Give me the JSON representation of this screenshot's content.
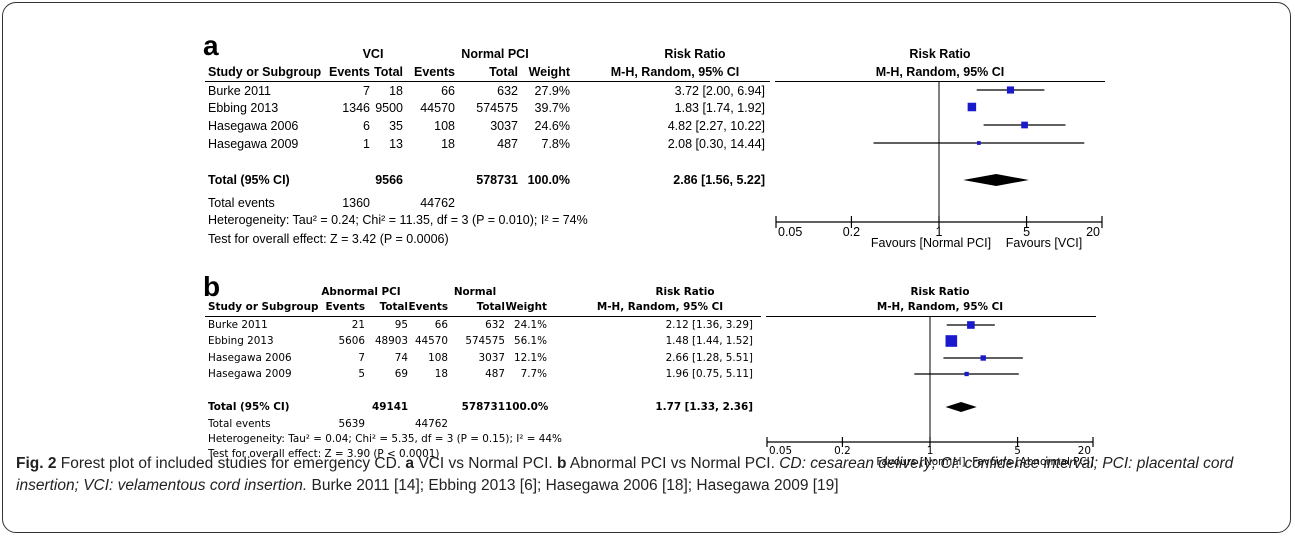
{
  "panel_a": {
    "letter": "a",
    "group1": "VCI",
    "group2": "Normal PCI",
    "col_study": "Study or Subgroup",
    "col_events1": "Events",
    "col_total1": "Total",
    "col_events2": "Events",
    "col_total2": "Total",
    "col_weight": "Weight",
    "rr_title": "Risk Ratio",
    "rr_method": "M-H, Random, 95% CI",
    "plot_title": "Risk Ratio",
    "plot_method": "M-H, Random, 95% CI",
    "rows": [
      {
        "study": "Burke 2011",
        "e1": "7",
        "t1": "18",
        "e2": "66",
        "t2": "632",
        "weight": "27.9%",
        "ci": "3.72 [2.00, 6.94]"
      },
      {
        "study": "Ebbing 2013",
        "e1": "1346",
        "t1": "9500",
        "e2": "44570",
        "t2": "574575",
        "weight": "39.7%",
        "ci": "1.83 [1.74, 1.92]"
      },
      {
        "study": "Hasegawa 2006",
        "e1": "6",
        "t1": "35",
        "e2": "108",
        "t2": "3037",
        "weight": "24.6%",
        "ci": "4.82 [2.27, 10.22]"
      },
      {
        "study": "Hasegawa 2009",
        "e1": "1",
        "t1": "13",
        "e2": "18",
        "t2": "487",
        "weight": "7.8%",
        "ci": "2.08 [0.30, 14.44]"
      }
    ],
    "total_label": "Total (95% CI)",
    "total_t1": "9566",
    "total_t2": "578731",
    "total_weight": "100.0%",
    "total_ci": "2.86 [1.56, 5.22]",
    "events_label": "Total events",
    "events_e1": "1360",
    "events_e2": "44762",
    "heterogeneity": "Heterogeneity: Tau² = 0.24; Chi² = 11.35, df = 3 (P = 0.010); I² = 74%",
    "overall": "Test for overall effect: Z = 3.42 (P = 0.0006)",
    "favours_left": "Favours [Normal PCI]",
    "favours_right": "Favours [VCI]"
  },
  "panel_b": {
    "letter": "b",
    "group1": "Abnormal PCI",
    "group2": "Normal",
    "col_study": "Study or Subgroup",
    "col_events1": "Events",
    "col_total1": "Total",
    "col_events2": "Events",
    "col_total2": "Total",
    "col_weight": "Weight",
    "rr_title": "Risk Ratio",
    "rr_method": "M-H, Random, 95% CI",
    "plot_title": "Risk Ratio",
    "plot_method": "M-H, Random, 95% CI",
    "rows": [
      {
        "study": "Burke 2011",
        "e1": "21",
        "t1": "95",
        "e2": "66",
        "t2": "632",
        "weight": "24.1%",
        "ci": "2.12 [1.36, 3.29]"
      },
      {
        "study": "Ebbing 2013",
        "e1": "5606",
        "t1": "48903",
        "e2": "44570",
        "t2": "574575",
        "weight": "56.1%",
        "ci": "1.48 [1.44, 1.52]"
      },
      {
        "study": "Hasegawa 2006",
        "e1": "7",
        "t1": "74",
        "e2": "108",
        "t2": "3037",
        "weight": "12.1%",
        "ci": "2.66 [1.28, 5.51]"
      },
      {
        "study": "Hasegawa 2009",
        "e1": "5",
        "t1": "69",
        "e2": "18",
        "t2": "487",
        "weight": "7.7%",
        "ci": "1.96 [0.75, 5.11]"
      }
    ],
    "total_label": "Total (95% CI)",
    "total_t1": "49141",
    "total_t2": "578731",
    "total_weight": "100.0%",
    "total_ci": "1.77 [1.33, 2.36]",
    "events_label": "Total events",
    "events_e1": "5639",
    "events_e2": "44762",
    "heterogeneity": "Heterogeneity: Tau² = 0.04; Chi² = 5.35, df = 3 (P = 0.15); I² = 44%",
    "overall": "Test for overall effect: Z = 3.90 (P < 0.0001)",
    "favours_left": "Favours [Normal]",
    "favours_right": "Favours [Abnormal PCI]"
  },
  "caption": {
    "fig": "Fig. 2",
    "text1": " Forest plot of included studies for emergency CD. ",
    "a_letter": "a",
    "a_text": " VCI vs Normal PCI. ",
    "b_letter": "b",
    "b_text": " Abnormal PCI vs Normal PCI. ",
    "italic": "CD: cesarean delivery; CI: confidence interval; PCI: placental cord insertion; VCI: velamentous cord insertion.",
    "refs": " Burke 2011 [14]; Ebbing 2013 [6]; Hasegawa 2006 [18]; Hasegawa 2009 [19]"
  },
  "chart_data": [
    {
      "type": "forest",
      "scale": "log",
      "xlim": [
        0.05,
        20
      ],
      "ticks": [
        0.05,
        0.2,
        1,
        5,
        20
      ],
      "tick_labels": [
        "0.05",
        "0.2",
        "1",
        "5",
        "20"
      ],
      "marker_color": "#1a1acc",
      "studies": [
        {
          "name": "Burke 2011",
          "rr": 3.72,
          "lo": 2.0,
          "hi": 6.94,
          "weight": 27.9
        },
        {
          "name": "Ebbing 2013",
          "rr": 1.83,
          "lo": 1.74,
          "hi": 1.92,
          "weight": 39.7
        },
        {
          "name": "Hasegawa 2006",
          "rr": 4.82,
          "lo": 2.27,
          "hi": 10.22,
          "weight": 24.6
        },
        {
          "name": "Hasegawa 2009",
          "rr": 2.08,
          "lo": 0.3,
          "hi": 14.44,
          "weight": 7.8
        }
      ],
      "total": {
        "rr": 2.86,
        "lo": 1.56,
        "hi": 5.22
      }
    },
    {
      "type": "forest",
      "scale": "log",
      "xlim": [
        0.05,
        20
      ],
      "ticks": [
        0.05,
        0.2,
        1,
        5,
        20
      ],
      "tick_labels": [
        "0.05",
        "0.2",
        "1",
        "5",
        "20"
      ],
      "marker_color": "#1a1acc",
      "studies": [
        {
          "name": "Burke 2011",
          "rr": 2.12,
          "lo": 1.36,
          "hi": 3.29,
          "weight": 24.1
        },
        {
          "name": "Ebbing 2013",
          "rr": 1.48,
          "lo": 1.44,
          "hi": 1.52,
          "weight": 56.1
        },
        {
          "name": "Hasegawa 2006",
          "rr": 2.66,
          "lo": 1.28,
          "hi": 5.51,
          "weight": 12.1
        },
        {
          "name": "Hasegawa 2009",
          "rr": 1.96,
          "lo": 0.75,
          "hi": 5.11,
          "weight": 7.7
        }
      ],
      "total": {
        "rr": 1.77,
        "lo": 1.33,
        "hi": 2.36
      }
    }
  ]
}
